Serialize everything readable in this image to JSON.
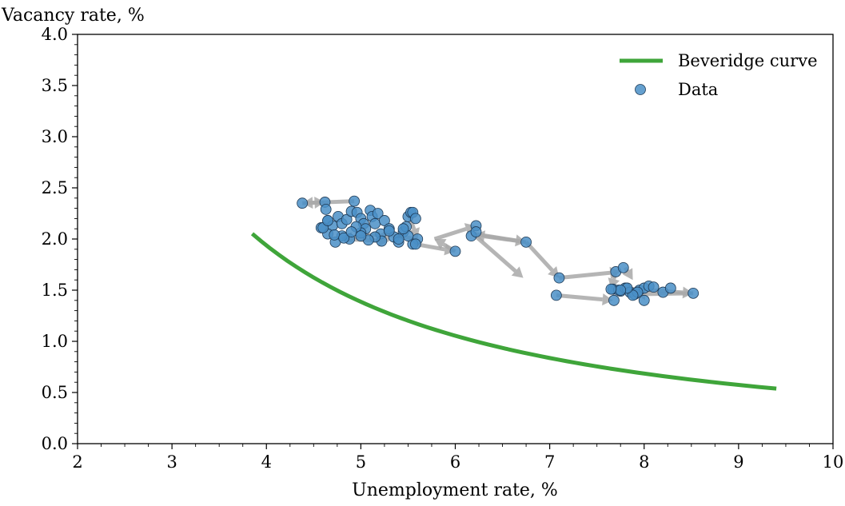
{
  "chart_data": {
    "type": "scatter",
    "title": "",
    "xlabel": "Unemployment rate, %",
    "ylabel": "Vacancy rate, %",
    "xlim": [
      2,
      10
    ],
    "ylim": [
      0,
      4
    ],
    "xticks": [
      "2",
      "3",
      "4",
      "5",
      "6",
      "7",
      "8",
      "9",
      "10"
    ],
    "yticks": [
      "0.0",
      "0.5",
      "1.0",
      "1.5",
      "2.0",
      "2.5",
      "3.0",
      "3.5",
      "4.0"
    ],
    "grid": false,
    "legend": {
      "position": "top-right",
      "entries": [
        "Beveridge curve",
        "Data"
      ]
    },
    "colors": {
      "curve": "#3fa53a",
      "points": "#4a8fc7",
      "point_edge": "#1f3a55",
      "arrows": "#a8a8a8"
    },
    "curve": {
      "name": "Beveridge curve",
      "x_range": [
        3.85,
        9.4
      ],
      "samples": 60,
      "formula": "v = 15.5 / u^1.5"
    },
    "series": [
      {
        "name": "Data",
        "x": [
          4.38,
          4.62,
          4.63,
          4.65,
          4.7,
          4.76,
          4.8,
          4.85,
          4.9,
          4.93,
          4.96,
          5.0,
          5.03,
          5.05,
          5.1,
          5.12,
          5.15,
          5.18,
          5.21,
          5.25,
          5.3,
          5.35,
          5.4,
          5.45,
          5.48,
          5.5,
          5.53,
          5.55,
          5.58,
          5.6,
          5.55,
          5.5,
          5.45,
          5.4,
          5.3,
          5.22,
          5.15,
          5.08,
          5.0,
          4.95,
          4.88,
          4.8,
          4.73,
          4.65,
          4.58,
          4.6,
          4.65,
          4.72,
          4.82,
          4.9,
          5.0,
          5.58,
          6.0,
          6.17,
          6.22,
          6.22,
          6.75,
          7.1,
          7.07,
          7.67,
          7.75,
          7.73,
          7.8,
          7.85,
          7.9,
          7.95,
          8.0,
          8.05,
          8.1,
          8.2,
          8.28,
          8.52,
          8.0,
          7.93,
          7.88,
          7.82,
          7.75,
          7.7,
          7.65,
          7.68,
          7.78
        ],
        "y": [
          2.35,
          2.36,
          2.29,
          2.18,
          2.13,
          2.22,
          2.15,
          2.19,
          2.27,
          2.37,
          2.26,
          2.2,
          2.15,
          2.1,
          2.28,
          2.22,
          2.15,
          2.25,
          2.05,
          2.18,
          2.1,
          2.02,
          1.97,
          2.07,
          2.12,
          2.22,
          2.26,
          2.26,
          2.2,
          2.0,
          1.95,
          2.03,
          2.1,
          2.0,
          2.08,
          1.98,
          2.02,
          1.99,
          2.06,
          2.12,
          2.0,
          2.03,
          1.97,
          2.05,
          2.11,
          2.11,
          2.18,
          2.04,
          2.01,
          2.07,
          2.03,
          1.95,
          1.88,
          2.03,
          2.13,
          2.07,
          1.97,
          1.62,
          1.45,
          1.51,
          1.49,
          1.5,
          1.52,
          1.48,
          1.46,
          1.5,
          1.52,
          1.54,
          1.53,
          1.48,
          1.52,
          1.47,
          1.4,
          1.48,
          1.45,
          1.52,
          1.5,
          1.68,
          1.51,
          1.4,
          1.72
        ]
      }
    ],
    "arrows": [
      [
        4.93,
        2.37,
        4.38,
        2.35
      ],
      [
        4.38,
        2.35,
        4.62,
        2.36
      ],
      [
        5.5,
        2.26,
        5.6,
        2.0
      ],
      [
        5.6,
        2.0,
        5.2,
        2.05
      ],
      [
        5.2,
        2.05,
        4.8,
        2.0
      ],
      [
        4.8,
        2.0,
        5.3,
        1.98
      ],
      [
        5.58,
        1.95,
        6.0,
        1.88
      ],
      [
        6.0,
        1.88,
        5.78,
        2.0
      ],
      [
        5.78,
        2.0,
        6.22,
        2.13
      ],
      [
        6.2,
        2.05,
        6.75,
        1.97
      ],
      [
        6.75,
        1.97,
        6.2,
        2.04
      ],
      [
        6.2,
        2.04,
        6.72,
        1.62
      ],
      [
        6.75,
        1.97,
        7.1,
        1.62
      ],
      [
        7.1,
        1.62,
        7.75,
        1.68
      ],
      [
        7.07,
        1.45,
        7.67,
        1.4
      ],
      [
        7.75,
        1.52,
        8.52,
        1.47
      ],
      [
        8.52,
        1.47,
        7.9,
        1.46
      ],
      [
        7.7,
        1.68,
        7.65,
        1.51
      ],
      [
        7.8,
        1.72,
        7.88,
        1.6
      ]
    ]
  }
}
